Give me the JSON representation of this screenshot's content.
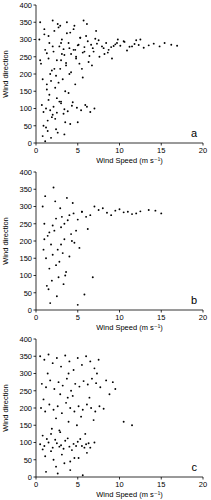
{
  "chart_data": [
    {
      "type": "scatter",
      "title": "a",
      "x_label": "Wind Speed (m s⁻¹)",
      "y_label": "Wind direction",
      "color": "#000000",
      "marker": "circle",
      "xlim": [
        0,
        20
      ],
      "ylim": [
        0,
        400
      ],
      "xticks": [
        0,
        5,
        10,
        15,
        20
      ],
      "yticks": [
        0,
        50,
        100,
        150,
        200,
        250,
        300,
        350,
        400
      ],
      "grid": false,
      "x": [
        2.1,
        2.8,
        3.4,
        3.9,
        4.5,
        5.1,
        5.6,
        6.2,
        6.8,
        7.3,
        7.9,
        8.4,
        9.0,
        9.5,
        10.1,
        10.6,
        11.2,
        11.8,
        12.3,
        12.9,
        13.5,
        14.1,
        14.8,
        15.4,
        16.2,
        16.9,
        8.7,
        9.8,
        10.9,
        12.0,
        3.1,
        4.2,
        5.3,
        6.4,
        7.5,
        8.6,
        9.7,
        4.8,
        6.0,
        7.1,
        2.5,
        3.6,
        4.7,
        5.8,
        6.9,
        3.3,
        5.0,
        6.6,
        8.1,
        9.3,
        0.5,
        0.8,
        1.0,
        1.2,
        1.5,
        1.7,
        2.0,
        2.3,
        2.6,
        3.0,
        0.6,
        0.9,
        1.3,
        1.6,
        1.9,
        2.2,
        2.7,
        3.2,
        3.7,
        4.1,
        1.1,
        1.4,
        1.8,
        2.4,
        2.9,
        3.5,
        4.0,
        4.6,
        5.2,
        5.7,
        0.7,
        1.2,
        1.7,
        2.1,
        2.5,
        3.0,
        3.4,
        3.8,
        4.3,
        4.9,
        5.4,
        5.9,
        6.5,
        7.0,
        2.8,
        3.3,
        4.4,
        1.5,
        2.0,
        6.1,
        0.8,
        1.3,
        1.9,
        2.4,
        3.0,
        3.6,
        4.2,
        4.8,
        5.5,
        6.3,
        0.4,
        1.0,
        1.6,
        2.2,
        2.9,
        3.7,
        4.5,
        5.3,
        6.1,
        7.2,
        1.8,
        2.6,
        3.4,
        4.1,
        5.0,
        0.9,
        1.4,
        2.3,
        3.9,
        4.7,
        0.5,
        1.1,
        1.5,
        2.0,
        2.5,
        3.1,
        1.3,
        2.7,
        3.5,
        5.6,
        10.5,
        11.5,
        12.5,
        7.6,
        8.2,
        9.1,
        6.7,
        4.0,
        5.8,
        3.0
      ],
      "values": [
        265,
        280,
        255,
        290,
        270,
        285,
        262,
        295,
        275,
        288,
        280,
        290,
        278,
        286,
        282,
        293,
        279,
        287,
        284,
        276,
        283,
        288,
        280,
        290,
        285,
        282,
        270,
        300,
        268,
        298,
        300,
        258,
        305,
        252,
        298,
        262,
        290,
        245,
        310,
        302,
        240,
        232,
        270,
        278,
        265,
        272,
        283,
        285,
        275,
        281,
        350,
        20,
        330,
        45,
        310,
        200,
        355,
        160,
        345,
        120,
        230,
        90,
        260,
        140,
        75,
        215,
        335,
        185,
        350,
        320,
        5,
        65,
        180,
        40,
        215,
        150,
        200,
        340,
        230,
        355,
        110,
        100,
        95,
        105,
        88,
        115,
        98,
        92,
        108,
        102,
        95,
        110,
        90,
        100,
        120,
        85,
        118,
        125,
        82,
        105,
        185,
        170,
        210,
        195,
        240,
        225,
        205,
        250,
        215,
        235,
        300,
        315,
        290,
        325,
        340,
        318,
        330,
        305,
        345,
        325,
        15,
        30,
        25,
        55,
        60,
        50,
        35,
        70,
        145,
        170,
        240,
        270,
        245,
        280,
        130,
        258,
        155,
        175,
        60,
        190,
        295,
        280,
        300,
        250,
        258,
        245,
        225,
        275,
        265,
        290
      ]
    },
    {
      "type": "scatter",
      "title": "b",
      "x_label": "Wind Speed (m s⁻¹)",
      "y_label": "Wind direction",
      "color": "#000000",
      "marker": "circle",
      "xlim": [
        0,
        20
      ],
      "ylim": [
        0,
        400
      ],
      "xticks": [
        0,
        5,
        10,
        15,
        20
      ],
      "yticks": [
        0,
        50,
        100,
        150,
        200,
        250,
        300,
        350,
        400
      ],
      "grid": false,
      "x": [
        4.5,
        5.5,
        6.5,
        7.5,
        8.5,
        9.5,
        10.5,
        11.5,
        12.5,
        13.5,
        14.3,
        15.0,
        10.0,
        11.0,
        12.0,
        9.0,
        8.0,
        7.0,
        6.0,
        5.0,
        1.0,
        1.4,
        1.8,
        2.2,
        2.6,
        3.0,
        3.4,
        3.8,
        4.2,
        4.6,
        1.2,
        1.6,
        2.0,
        2.4,
        2.8,
        3.2,
        3.6,
        4.0,
        5.2,
        6.2,
        0.8,
        1.1,
        1.5,
        1.9,
        2.3,
        2.7,
        3.1,
        3.5,
        4.4,
        5.8,
        1.3,
        1.7,
        2.1,
        2.5,
        2.9,
        3.3,
        5.0,
        0.9,
        6.8,
        3.7,
        1.0,
        2.0,
        3.0,
        4.0,
        4.8,
        2.4,
        1.6,
        3.4,
        4.3,
        5.5
      ],
      "values": [
        280,
        285,
        275,
        290,
        282,
        288,
        283,
        278,
        286,
        290,
        288,
        280,
        292,
        285,
        280,
        275,
        295,
        300,
        270,
        262,
        250,
        215,
        190,
        230,
        175,
        240,
        205,
        260,
        220,
        195,
        150,
        120,
        160,
        130,
        140,
        165,
        110,
        155,
        180,
        235,
        300,
        330,
        60,
        85,
        315,
        95,
        270,
        100,
        310,
        45,
        70,
        20,
        355,
        40,
        295,
        75,
        15,
        175,
        95,
        325,
        205,
        245,
        190,
        275,
        230,
        265,
        225,
        250,
        200,
        285
      ]
    },
    {
      "type": "scatter",
      "title": "c",
      "x_label": "Wind Speed (m s⁻¹)",
      "y_label": "Wind direction",
      "color": "#000000",
      "marker": "circle",
      "xlim": [
        0,
        20
      ],
      "ylim": [
        0,
        400
      ],
      "xticks": [
        0,
        5,
        10,
        15,
        20
      ],
      "yticks": [
        0,
        50,
        100,
        150,
        200,
        250,
        300,
        350,
        400
      ],
      "grid": false,
      "x": [
        0.5,
        1.0,
        1.5,
        2.0,
        2.5,
        3.0,
        3.5,
        4.0,
        4.5,
        5.0,
        5.5,
        6.0,
        6.5,
        7.0,
        0.8,
        1.3,
        1.8,
        2.3,
        2.8,
        3.3,
        3.8,
        4.3,
        4.8,
        5.3,
        5.8,
        6.3,
        1.2,
        2.6,
        4.1,
        5.6,
        0.6,
        1.1,
        1.6,
        2.1,
        2.6,
        3.1,
        3.6,
        4.1,
        4.6,
        5.1,
        5.6,
        6.1,
        6.6,
        7.1,
        7.6,
        8.1,
        2.4,
        3.9,
        5.4,
        6.9,
        0.7,
        1.2,
        1.7,
        2.2,
        2.7,
        3.2,
        3.7,
        4.2,
        4.7,
        5.2,
        5.7,
        6.2,
        6.7,
        7.2,
        7.7,
        8.4,
        9.2,
        1.4,
        2.9,
        4.4,
        0.5,
        1.0,
        1.5,
        2.0,
        2.5,
        3.0,
        3.5,
        4.0,
        4.5,
        5.0,
        5.5,
        6.0,
        6.5,
        7.0,
        7.5,
        0.9,
        1.9,
        2.9,
        3.9,
        4.9,
        1.1,
        2.1,
        3.1,
        4.1,
        5.1,
        6.1,
        0.8,
        1.8,
        2.8,
        3.8,
        10.5,
        11.5,
        8.8,
        9.5,
        6.4,
        7.3,
        5.9,
        4.6,
        3.4,
        2.4
      ],
      "values": [
        95,
        90,
        100,
        85,
        98,
        92,
        105,
        88,
        96,
        102,
        90,
        95,
        85,
        100,
        80,
        110,
        75,
        108,
        88,
        82,
        112,
        78,
        90,
        110,
        85,
        98,
        15,
        10,
        20,
        5,
        200,
        190,
        210,
        195,
        205,
        185,
        215,
        200,
        190,
        205,
        195,
        210,
        200,
        190,
        205,
        198,
        170,
        160,
        175,
        165,
        270,
        260,
        280,
        255,
        275,
        265,
        285,
        250,
        270,
        262,
        278,
        268,
        285,
        272,
        260,
        280,
        275,
        300,
        240,
        235,
        350,
        340,
        355,
        330,
        345,
        320,
        352,
        335,
        310,
        345,
        325,
        350,
        335,
        315,
        340,
        225,
        140,
        130,
        300,
        150,
        60,
        50,
        65,
        45,
        55,
        70,
        120,
        125,
        135,
        230,
        160,
        150,
        240,
        255,
        230,
        300,
        125,
        55,
        40,
        30
      ]
    }
  ]
}
